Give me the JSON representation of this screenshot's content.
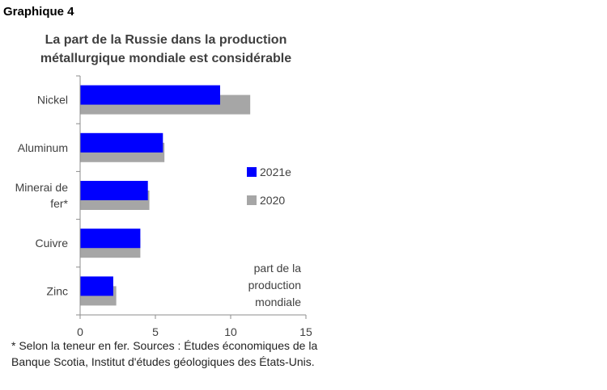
{
  "figure_label": "Graphique 4",
  "title_lines": [
    "La part de la Russie dans la production",
    "métallurgique mondiale est considérable"
  ],
  "footnote": "* Selon la teneur en fer. Sources : Études économiques de la Banque Scotia, Institut d'études géologiques des États-Unis.",
  "chart_data": {
    "type": "bar",
    "orientation": "horizontal",
    "title": "La part de la Russie dans la production métallurgique mondiale est considérable",
    "categories": [
      "Nickel",
      "Aluminum",
      "Minerai de fer*",
      "Cuivre",
      "Zinc"
    ],
    "category_label_lines": [
      [
        "Nickel"
      ],
      [
        "Aluminum"
      ],
      [
        "Minerai de",
        "fer*"
      ],
      [
        "Cuivre"
      ],
      [
        "Zinc"
      ]
    ],
    "series": [
      {
        "name": "2021e",
        "values": [
          9.3,
          5.5,
          4.5,
          4.0,
          2.2
        ],
        "color": "#0000ff"
      },
      {
        "name": "2020",
        "values": [
          11.3,
          5.6,
          4.6,
          4.0,
          2.4
        ],
        "color": "#a6a6a6"
      }
    ],
    "xlim": [
      0,
      15
    ],
    "xticks": [
      0,
      5,
      10,
      15
    ],
    "xlabel": "",
    "ylabel": "",
    "unit_annotation": [
      "part de la",
      "production",
      "mondiale"
    ],
    "legend_position": "right",
    "grid": false
  }
}
